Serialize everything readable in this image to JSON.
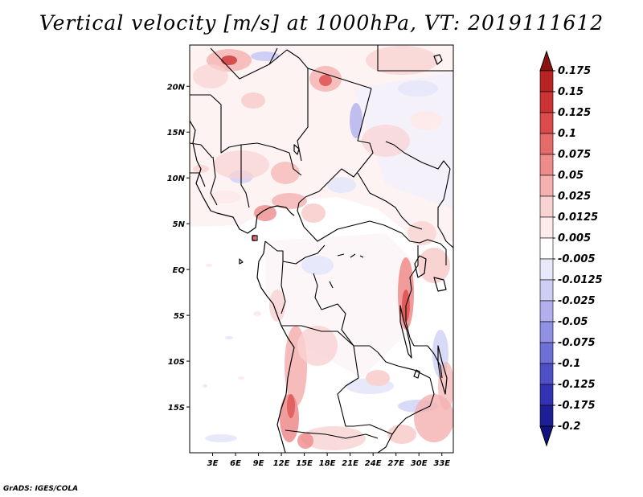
{
  "title": "Vertical velocity [m/s] at 1000hPa, VT: 2019111612",
  "credit": "GrADS: IGES/COLA",
  "map": {
    "lon_range": [
      0,
      34.5
    ],
    "lat_range": [
      -20,
      24.5
    ],
    "x_ticks": [
      {
        "value": 3,
        "label": "3E"
      },
      {
        "value": 6,
        "label": "6E"
      },
      {
        "value": 9,
        "label": "9E"
      },
      {
        "value": 12,
        "label": "12E"
      },
      {
        "value": 15,
        "label": "15E"
      },
      {
        "value": 18,
        "label": "18E"
      },
      {
        "value": 21,
        "label": "21E"
      },
      {
        "value": 24,
        "label": "24E"
      },
      {
        "value": 27,
        "label": "27E"
      },
      {
        "value": 30,
        "label": "30E"
      },
      {
        "value": 33,
        "label": "33E"
      }
    ],
    "y_ticks": [
      {
        "value": 20,
        "label": "20N"
      },
      {
        "value": 15,
        "label": "15N"
      },
      {
        "value": 10,
        "label": "10N"
      },
      {
        "value": 5,
        "label": "5N"
      },
      {
        "value": 0,
        "label": "EQ"
      },
      {
        "value": -5,
        "label": "5S"
      },
      {
        "value": -10,
        "label": "10S"
      },
      {
        "value": -15,
        "label": "15S"
      }
    ]
  },
  "colorbar": {
    "levels": [
      {
        "label": "0.175",
        "color": "#9e1a1a"
      },
      {
        "label": "0.15",
        "color": "#b82424"
      },
      {
        "label": "0.125",
        "color": "#cc3333"
      },
      {
        "label": "0.1",
        "color": "#dc4b4b"
      },
      {
        "label": "0.075",
        "color": "#e56a6a"
      },
      {
        "label": "0.05",
        "color": "#ee8b8b"
      },
      {
        "label": "0.025",
        "color": "#f5b0b0"
      },
      {
        "label": "0.0125",
        "color": "#f9d2d2"
      },
      {
        "label": "0.005",
        "color": "#fdeaea"
      },
      {
        "label": "-0.005",
        "color": "#ffffff"
      },
      {
        "label": "-0.0125",
        "color": "#e8e8fb"
      },
      {
        "label": "-0.025",
        "color": "#cfcff6"
      },
      {
        "label": "-0.05",
        "color": "#b0b0ee"
      },
      {
        "label": "-0.075",
        "color": "#9090e4"
      },
      {
        "label": "-0.1",
        "color": "#6f6fd8"
      },
      {
        "label": "-0.125",
        "color": "#4f4fc8"
      },
      {
        "label": "-0.175",
        "color": "#3232b2"
      },
      {
        "label": "-0.2",
        "color": "#1e1e96"
      }
    ],
    "top_color": "#8c1212",
    "bottom_color": "#12127d"
  }
}
